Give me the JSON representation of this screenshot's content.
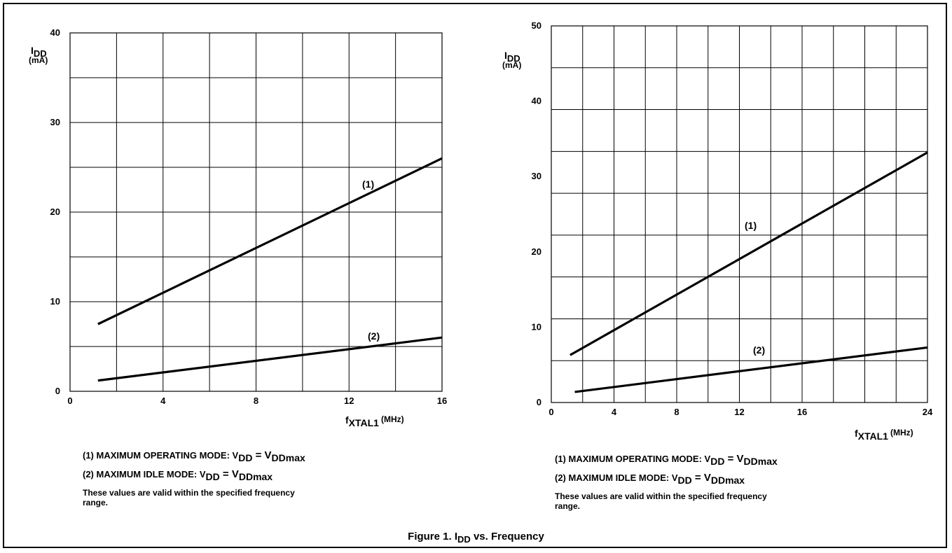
{
  "chart_data": [
    {
      "type": "line",
      "x_ticks": [
        "0",
        "4",
        "8",
        "12",
        "16"
      ],
      "y_ticks": [
        "0",
        "10",
        "20",
        "30",
        "40"
      ],
      "xlim": [
        0,
        16
      ],
      "ylim": [
        0,
        40
      ],
      "grid": true,
      "y_axis_label": {
        "main": "I",
        "sub": "DD",
        "unit": "(mA)"
      },
      "x_axis_label": {
        "main": "f",
        "sub": "XTAL1",
        "unit": "(MHz)"
      },
      "series": [
        {
          "label": "(1)",
          "x": [
            1.2,
            16
          ],
          "y": [
            7.5,
            26
          ]
        },
        {
          "label": "(2)",
          "x": [
            1.2,
            16
          ],
          "y": [
            1.2,
            6
          ]
        }
      ]
    },
    {
      "type": "line",
      "x_ticks": [
        "0",
        "4",
        "8",
        "12",
        "16",
        "24"
      ],
      "y_ticks": [
        "0",
        "10",
        "20",
        "30",
        "40",
        "50"
      ],
      "xlim": [
        0,
        24
      ],
      "ylim": [
        0,
        50
      ],
      "grid": true,
      "y_axis_label": {
        "main": "I",
        "sub": "DD",
        "unit": "(mA)"
      },
      "x_axis_label": {
        "main": "f",
        "sub": "XTAL1",
        "unit": "(MHz)"
      },
      "series": [
        {
          "label": "(1)",
          "x": [
            1.2,
            24
          ],
          "y": [
            6.3,
            33.2
          ]
        },
        {
          "label": "(2)",
          "x": [
            1.5,
            24
          ],
          "y": [
            1.4,
            7.3
          ]
        }
      ]
    }
  ],
  "notes_left": {
    "op_prefix": "(1) MAXIMUM OPERATING MODE: V",
    "op_sub1": "DD",
    "op_mid": " =  V",
    "op_sub2": "DDmax",
    "idle_prefix": "(2) MAXIMUM IDLE MODE: V",
    "idle_sub1": "DD",
    "idle_mid": " = V",
    "idle_sub2": "DDmax",
    "validity": "These values are valid within the specified frequency range."
  },
  "notes_right": {
    "op_prefix": "(1) MAXIMUM OPERATING MODE: V",
    "op_sub1": "DD",
    "op_mid": " =  V",
    "op_sub2": "DDmax",
    "idle_prefix": "(2) MAXIMUM IDLE MODE: V",
    "idle_sub1": "DD",
    "idle_mid": " = V",
    "idle_sub2": "DDmax",
    "validity": "These values are valid within the specified frequency range."
  },
  "caption": {
    "prefix": "Figure 1.   I",
    "sub": "DD",
    "suffix": " vs. Frequency"
  }
}
